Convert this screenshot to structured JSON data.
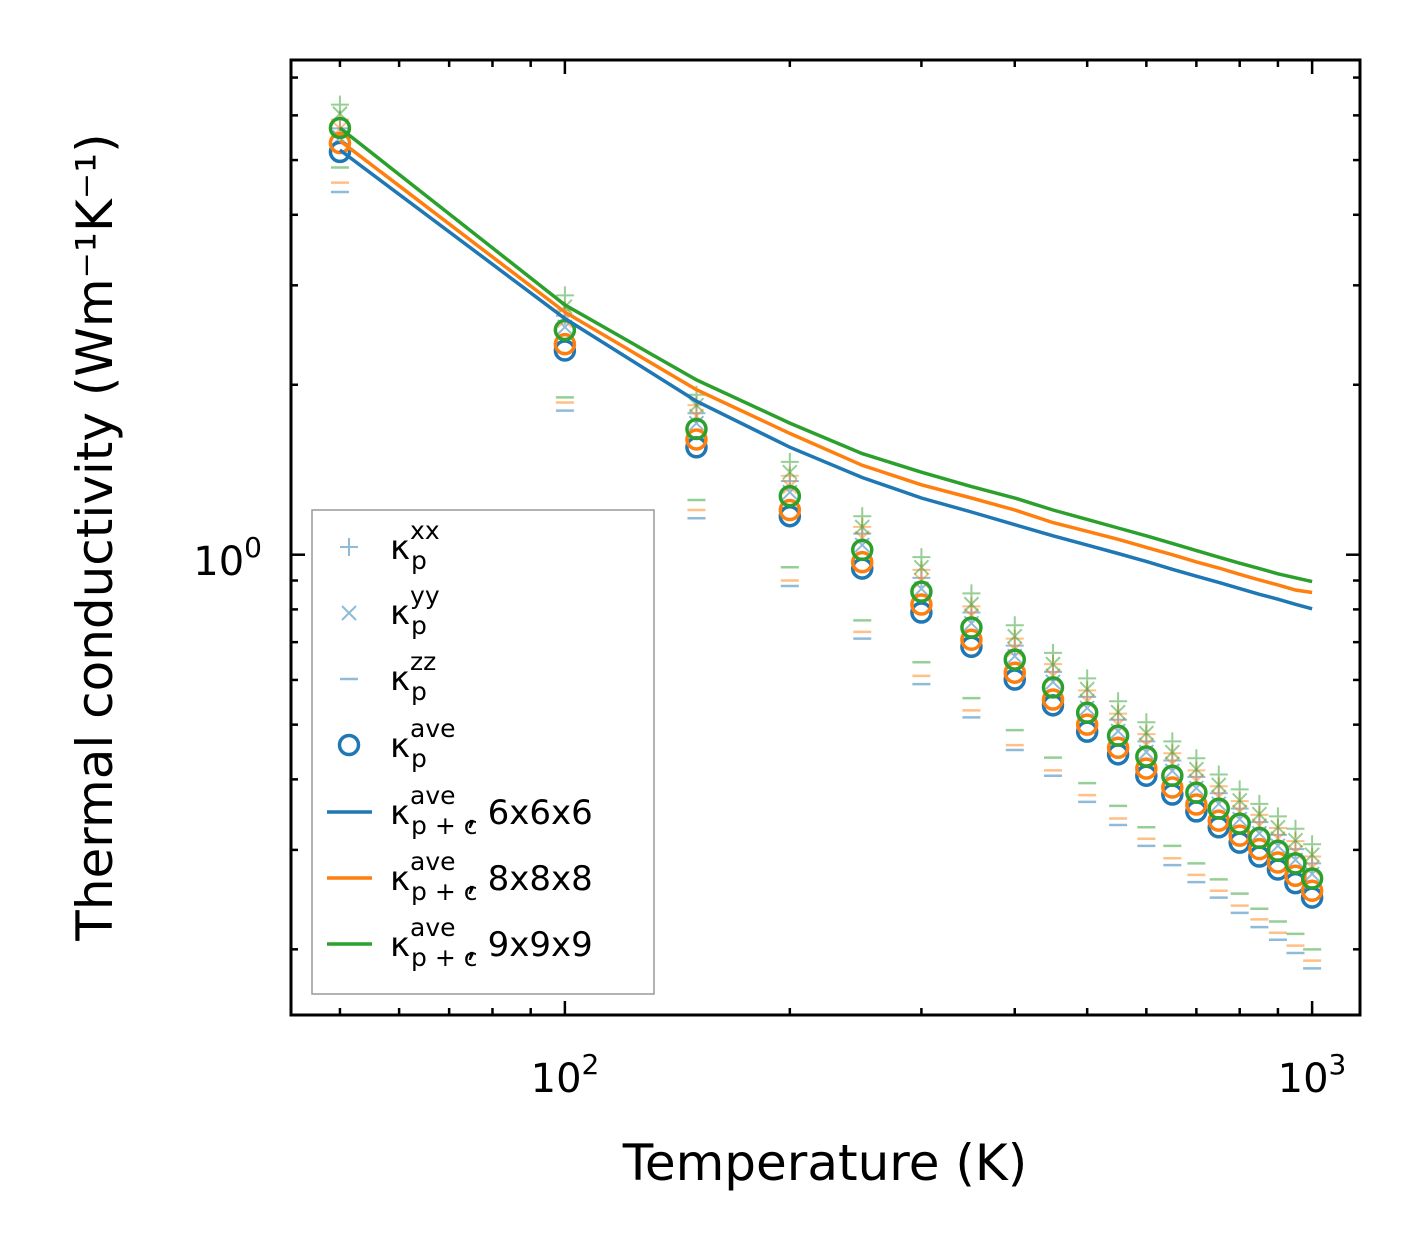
{
  "chart_data": {
    "type": "scatter",
    "title": "",
    "xlabel": "Temperature (K)",
    "ylabel": "Thermal conductivity (Wm⁻¹K⁻¹)",
    "xscale": "log",
    "yscale": "log",
    "xlim": [
      43,
      1159
    ],
    "ylim": [
      0.153,
      7.52
    ],
    "grid": false,
    "legend_position": "lower-left",
    "x_tick_labels": [
      {
        "value": 100,
        "base": "10",
        "exp": "2"
      },
      {
        "value": 1000,
        "base": "10",
        "exp": "3"
      }
    ],
    "y_tick_labels": [
      {
        "value": 1,
        "base": "10",
        "exp": "0"
      }
    ],
    "x": [
      50,
      100,
      150,
      200,
      250,
      300,
      350,
      400,
      450,
      500,
      550,
      600,
      650,
      700,
      750,
      800,
      850,
      900,
      950,
      1000
    ],
    "colors": {
      "6x6x6": "#1f77b4",
      "8x8x8": "#ff7f0e",
      "9x9x9": "#2ca02c"
    },
    "series": [
      {
        "mesh": "6x6x6",
        "color": "#1f77b4",
        "kxx": [
          5.69,
          2.65,
          1.78,
          1.35,
          1.09,
          0.91,
          0.79,
          0.69,
          0.62,
          0.56,
          0.51,
          0.467,
          0.432,
          0.404,
          0.378,
          0.355,
          0.336,
          0.319,
          0.301,
          0.284
        ],
        "kyy": [
          5.48,
          2.53,
          1.71,
          1.29,
          1.04,
          0.87,
          0.756,
          0.661,
          0.595,
          0.535,
          0.487,
          0.447,
          0.414,
          0.386,
          0.362,
          0.34,
          0.321,
          0.305,
          0.288,
          0.272
        ],
        "kzz": [
          4.39,
          1.8,
          1.16,
          0.88,
          0.71,
          0.59,
          0.515,
          0.451,
          0.406,
          0.365,
          0.332,
          0.305,
          0.282,
          0.263,
          0.247,
          0.232,
          0.219,
          0.208,
          0.197,
          0.185
        ],
        "kave": [
          5.17,
          2.3,
          1.55,
          1.17,
          0.945,
          0.79,
          0.687,
          0.601,
          0.541,
          0.486,
          0.443,
          0.406,
          0.376,
          0.351,
          0.329,
          0.309,
          0.292,
          0.277,
          0.262,
          0.247
        ],
        "kave_pc": [
          5.21,
          2.62,
          1.87,
          1.55,
          1.37,
          1.26,
          1.19,
          1.13,
          1.08,
          1.04,
          1.005,
          0.973,
          0.942,
          0.916,
          0.893,
          0.871,
          0.851,
          0.834,
          0.817,
          0.802
        ]
      },
      {
        "mesh": "8x8x8",
        "color": "#ff7f0e",
        "kxx": [
          5.9,
          2.71,
          1.84,
          1.38,
          1.12,
          0.94,
          0.81,
          0.71,
          0.64,
          0.575,
          0.523,
          0.481,
          0.445,
          0.415,
          0.389,
          0.366,
          0.346,
          0.328,
          0.311,
          0.292
        ],
        "kyy": [
          5.68,
          2.6,
          1.76,
          1.32,
          1.07,
          0.9,
          0.78,
          0.68,
          0.61,
          0.55,
          0.5,
          0.46,
          0.426,
          0.397,
          0.372,
          0.35,
          0.331,
          0.314,
          0.297,
          0.279
        ],
        "kzz": [
          4.56,
          1.86,
          1.2,
          0.9,
          0.73,
          0.61,
          0.53,
          0.46,
          0.415,
          0.375,
          0.341,
          0.314,
          0.29,
          0.271,
          0.254,
          0.239,
          0.226,
          0.214,
          0.203,
          0.191
        ],
        "kave": [
          5.36,
          2.36,
          1.6,
          1.2,
          0.97,
          0.816,
          0.707,
          0.618,
          0.554,
          0.5,
          0.455,
          0.418,
          0.387,
          0.361,
          0.338,
          0.318,
          0.301,
          0.285,
          0.27,
          0.254
        ],
        "kave_pc": [
          5.41,
          2.69,
          1.96,
          1.64,
          1.44,
          1.33,
          1.26,
          1.2,
          1.14,
          1.1,
          1.065,
          1.03,
          1.0,
          0.971,
          0.947,
          0.923,
          0.902,
          0.884,
          0.866,
          0.857
        ]
      },
      {
        "mesh": "9x9x9",
        "color": "#2ca02c",
        "kxx": [
          6.27,
          2.88,
          1.92,
          1.46,
          1.17,
          0.99,
          0.854,
          0.75,
          0.67,
          0.604,
          0.55,
          0.505,
          0.467,
          0.436,
          0.408,
          0.384,
          0.362,
          0.344,
          0.327,
          0.307
        ],
        "kyy": [
          6.04,
          2.75,
          1.84,
          1.4,
          1.12,
          0.95,
          0.817,
          0.717,
          0.64,
          0.578,
          0.526,
          0.483,
          0.447,
          0.417,
          0.391,
          0.367,
          0.347,
          0.329,
          0.312,
          0.294
        ],
        "kzz": [
          4.85,
          1.9,
          1.25,
          0.95,
          0.765,
          0.645,
          0.557,
          0.489,
          0.437,
          0.394,
          0.359,
          0.329,
          0.305,
          0.284,
          0.266,
          0.251,
          0.236,
          0.224,
          0.213,
          0.2
        ],
        "kave": [
          5.7,
          2.5,
          1.67,
          1.27,
          1.02,
          0.86,
          0.743,
          0.652,
          0.582,
          0.525,
          0.478,
          0.439,
          0.406,
          0.379,
          0.355,
          0.334,
          0.315,
          0.299,
          0.284,
          0.267
        ],
        "kave_pc": [
          5.7,
          2.77,
          2.04,
          1.71,
          1.51,
          1.4,
          1.32,
          1.26,
          1.2,
          1.155,
          1.115,
          1.08,
          1.047,
          1.017,
          0.99,
          0.966,
          0.945,
          0.925,
          0.91,
          0.896
        ]
      }
    ],
    "legend": [
      {
        "marker": "plus",
        "base": "κ",
        "sub": "p",
        "sup": "xx",
        "suffix": ""
      },
      {
        "marker": "cross",
        "base": "κ",
        "sub": "p",
        "sup": "yy",
        "suffix": ""
      },
      {
        "marker": "dash",
        "base": "κ",
        "sub": "p",
        "sup": "zz",
        "suffix": ""
      },
      {
        "marker": "circle",
        "base": "κ",
        "sub": "p",
        "sup": "ave",
        "suffix": ""
      },
      {
        "marker": "line-6x6x6",
        "base": "κ",
        "sub": "p + c",
        "sup": "ave",
        "suffix": ", 6x6x6"
      },
      {
        "marker": "line-8x8x8",
        "base": "κ",
        "sub": "p + c",
        "sup": "ave",
        "suffix": ", 8x8x8"
      },
      {
        "marker": "line-9x9x9",
        "base": "κ",
        "sub": "p + c",
        "sup": "ave",
        "suffix": ", 9x9x9"
      }
    ]
  }
}
